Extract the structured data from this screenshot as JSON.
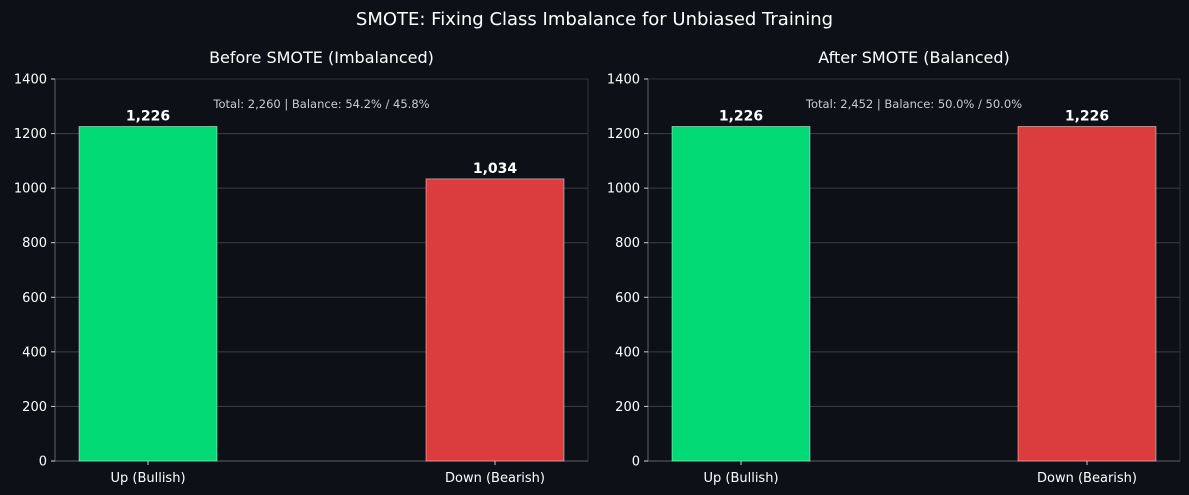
{
  "figure": {
    "suptitle": "SMOTE: Fixing Class Imbalance for Unbiased Training",
    "background": "#0d1117",
    "text_color": "#ffffff",
    "grid_color": "#3a3f47"
  },
  "chart_data": [
    {
      "type": "bar",
      "title": "Before SMOTE (Imbalanced)",
      "categories": [
        "Up (Bullish)",
        "Down (Bearish)"
      ],
      "values": [
        1226,
        1034
      ],
      "value_labels": [
        "1,226",
        "1,034"
      ],
      "colors": [
        "#00d974",
        "#db3d3e"
      ],
      "annotation": "Total: 2,260  |  Balance: 54.2% / 45.8%",
      "ylim": [
        0,
        1400
      ],
      "yticks": [
        0,
        200,
        400,
        600,
        800,
        1000,
        1200,
        1400
      ],
      "xlabel": "",
      "ylabel": "",
      "grid": true
    },
    {
      "type": "bar",
      "title": "After SMOTE  (Balanced)",
      "categories": [
        "Up (Bullish)",
        "Down (Bearish)"
      ],
      "values": [
        1226,
        1226
      ],
      "value_labels": [
        "1,226",
        "1,226"
      ],
      "colors": [
        "#00d974",
        "#db3d3e"
      ],
      "annotation": "Total: 2,452  |  Balance: 50.0% / 50.0%",
      "ylim": [
        0,
        1400
      ],
      "yticks": [
        0,
        200,
        400,
        600,
        800,
        1000,
        1200,
        1400
      ],
      "xlabel": "",
      "ylabel": "",
      "grid": true
    }
  ]
}
